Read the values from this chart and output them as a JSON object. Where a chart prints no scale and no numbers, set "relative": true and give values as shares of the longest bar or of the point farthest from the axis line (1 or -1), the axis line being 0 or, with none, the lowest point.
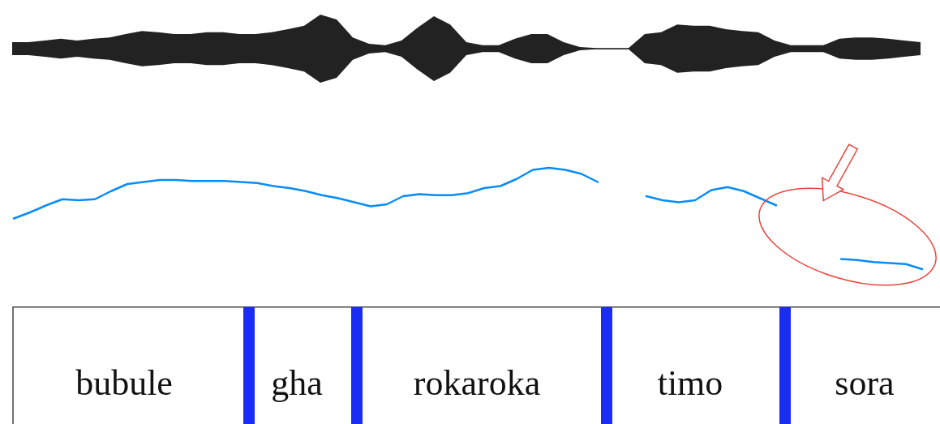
{
  "chart_data": [
    {
      "type": "area",
      "relative": true,
      "categories": [
        null,
        null,
        null,
        null,
        null,
        null,
        null,
        null,
        null,
        null,
        null,
        null,
        null,
        null,
        null,
        null,
        null,
        null,
        null,
        null,
        null,
        null,
        null,
        null,
        null,
        null,
        null,
        null,
        null,
        null,
        null,
        null,
        null,
        null,
        null,
        null,
        null,
        null,
        null,
        null,
        null,
        null,
        null,
        null,
        null,
        null,
        null,
        null,
        null,
        null,
        null,
        null,
        null,
        null,
        null,
        null,
        null
      ],
      "series": [
        {
          "color": "#222222",
          "values": [
            0.19,
            0.19,
            0.24,
            0.29,
            0.24,
            0.29,
            0.33,
            0.43,
            0.52,
            0.48,
            0.43,
            0.43,
            0.48,
            0.48,
            0.43,
            0.43,
            0.48,
            0.57,
            0.67,
            1,
            0.86,
            0.33,
            0.14,
            0.1,
            0.24,
            0.62,
            0.95,
            0.71,
            0.19,
            0.1,
            0.1,
            0.29,
            0.43,
            0.43,
            0.19,
            0.05,
            0.02,
            0.02,
            0.02,
            0.43,
            0.48,
            0.71,
            0.67,
            0.67,
            0.57,
            0.52,
            0.48,
            0.24,
            0.1,
            0.1,
            0.1,
            0.29,
            0.33,
            0.33,
            0.29,
            0.24,
            0.19
          ]
        },
        {
          "color": "#222222",
          "values": [
            -0.19,
            -0.19,
            -0.24,
            -0.29,
            -0.24,
            -0.29,
            -0.33,
            -0.43,
            -0.52,
            -0.48,
            -0.43,
            -0.43,
            -0.48,
            -0.48,
            -0.43,
            -0.43,
            -0.48,
            -0.57,
            -0.67,
            -1,
            -0.86,
            -0.33,
            -0.14,
            -0.1,
            -0.24,
            -0.62,
            -0.95,
            -0.71,
            -0.19,
            -0.1,
            -0.1,
            -0.29,
            -0.43,
            -0.43,
            -0.19,
            -0.05,
            -0.02,
            -0.02,
            -0.02,
            -0.43,
            -0.48,
            -0.71,
            -0.67,
            -0.67,
            -0.57,
            -0.52,
            -0.48,
            -0.24,
            -0.1,
            -0.1,
            -0.1,
            -0.29,
            -0.33,
            -0.33,
            -0.29,
            -0.24,
            -0.19
          ]
        }
      ]
    },
    {
      "type": "line",
      "relative": true,
      "categories": [
        null,
        null,
        null,
        null,
        null,
        null,
        null,
        null,
        null,
        null,
        null,
        null,
        null,
        null,
        null,
        null,
        null,
        null,
        null,
        null,
        null,
        null,
        null,
        null,
        null,
        null,
        null,
        null,
        null,
        null,
        null,
        null,
        null,
        null,
        null,
        null,
        null,
        null,
        null,
        null,
        null,
        null,
        null,
        null,
        null,
        null,
        null,
        null,
        null,
        null,
        null,
        null,
        null,
        null,
        null,
        null,
        null
      ],
      "color": "#0a8cf5",
      "values": [
        0.5,
        0.56,
        0.63,
        0.69,
        0.68,
        0.69,
        0.77,
        0.84,
        0.86,
        0.88,
        0.88,
        0.87,
        0.87,
        0.87,
        0.86,
        0.85,
        0.82,
        0.8,
        0.77,
        0.73,
        0.7,
        0.66,
        0.62,
        0.64,
        0.72,
        0.74,
        0.73,
        0.73,
        0.75,
        0.8,
        0.82,
        0.89,
        0.98,
        1,
        0.98,
        0.94,
        0.86,
        null,
        null,
        0.72,
        0.68,
        0.66,
        0.68,
        0.78,
        0.81,
        0.77,
        0.7,
        0.63,
        null,
        null,
        null,
        0.1,
        0.09,
        0.07,
        0.06,
        0.05,
        0
      ]
    },
    {
      "type": "other",
      "categories": [
        "bubule",
        "gha",
        "rokaroka",
        "timo",
        "sora"
      ],
      "color": "#1a2cf5"
    }
  ]
}
